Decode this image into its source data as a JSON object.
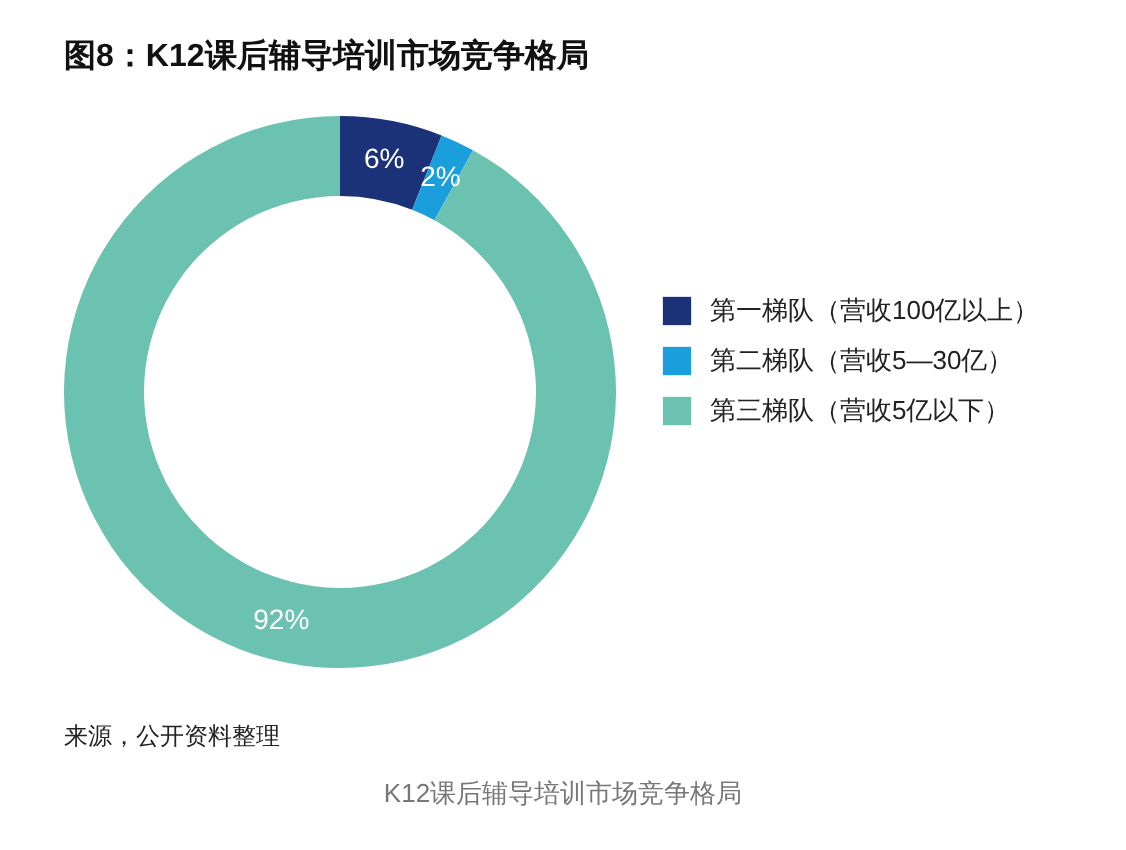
{
  "chart_data": {
    "type": "donut",
    "title": "图8：K12课后辅导培训市场竞争格局",
    "categories": [
      "第一梯队（营收100亿以上）",
      "第二梯队（营收5—30亿）",
      "第三梯队（营收5亿以下）"
    ],
    "values": [
      6,
      2,
      92
    ],
    "colors": [
      "#1b3278",
      "#1a9fdc",
      "#6cc2b0"
    ],
    "value_labels": [
      "6%",
      "2%",
      "92%"
    ],
    "legend": "right",
    "annotations": [
      "来源，公开资料整理",
      "K12课后辅导培训市场竞争格局"
    ]
  }
}
